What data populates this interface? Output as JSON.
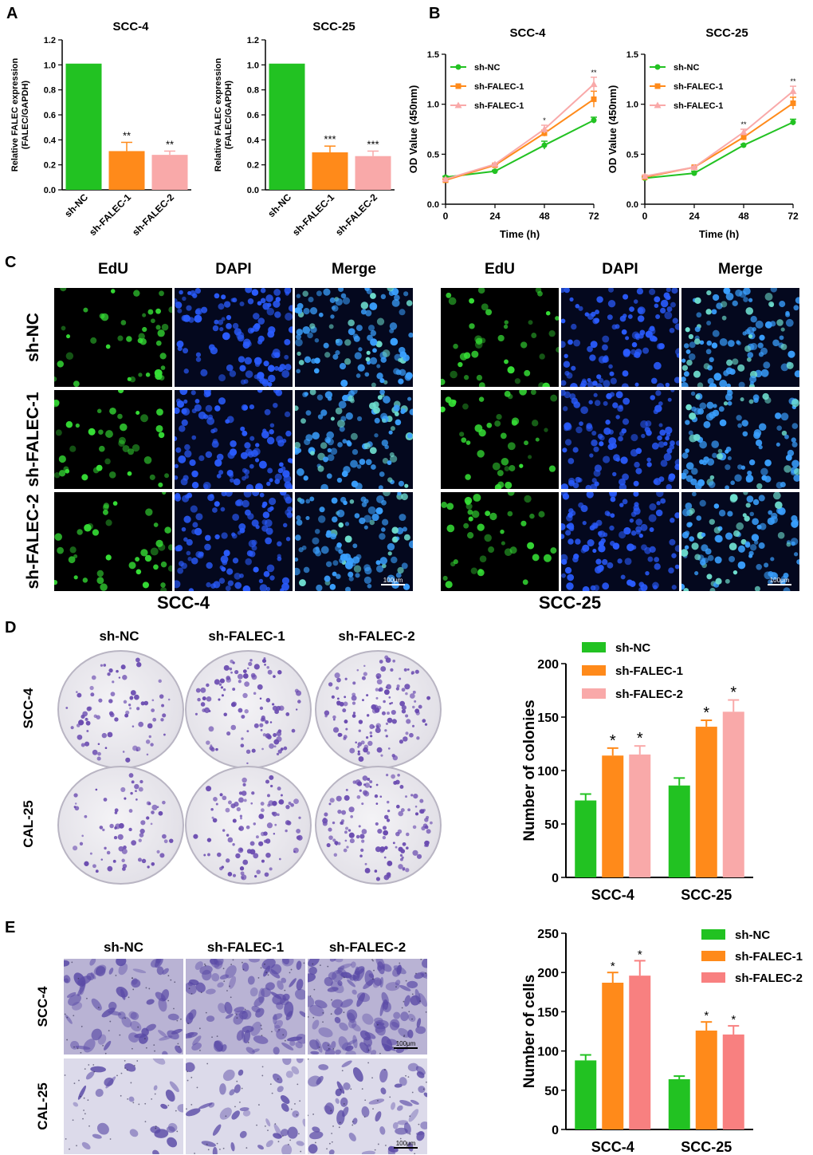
{
  "figure": {
    "panels": {
      "A": "A",
      "B": "B",
      "C": "C",
      "D": "D",
      "E": "E"
    }
  },
  "colors": {
    "sh_nc": "#22c222",
    "sh_falec_1": "#ff8a1a",
    "sh_falec_2": "#f9a9a9",
    "sh_falec_2_e": "#f88080",
    "edu": "#36e036",
    "dapi": "#2a5cff",
    "merge": "#3aa0ff",
    "crystal_violet": "#6a4bb0"
  },
  "panel_c": {
    "columns": [
      "EdU",
      "DAPI",
      "Merge"
    ],
    "rows": [
      "sh-NC",
      "sh-FALEC-1",
      "sh-FALEC-2"
    ],
    "scale_bar": "100μm",
    "left_title": "SCC-4",
    "right_title": "SCC-25"
  },
  "panel_d": {
    "columns": [
      "sh-NC",
      "sh-FALEC-1",
      "sh-FALEC-2"
    ],
    "rows": [
      "SCC-4",
      "CAL-25"
    ]
  },
  "panel_e": {
    "columns": [
      "sh-NC",
      "sh-FALEC-1",
      "sh-FALEC-2"
    ],
    "rows": [
      "SCC-4",
      "CAL-25"
    ],
    "scale_bar": "100μm"
  },
  "chart_data": [
    {
      "id": "A-left",
      "type": "bar",
      "title": "SCC-4",
      "ylabel": "Relative FALEC expression (FALEC/GAPDH)",
      "categories": [
        "sh-NC",
        "sh-FALEC-1",
        "sh-FALEC-2"
      ],
      "values": [
        1.01,
        0.31,
        0.28
      ],
      "errors": [
        0,
        0.07,
        0.03
      ],
      "significance": [
        "",
        "**",
        "**"
      ],
      "ylim": [
        0,
        1.2
      ],
      "yticks": [
        "0.0",
        "0.2",
        "0.4",
        "0.6",
        "0.8",
        "1.0",
        "1.2"
      ]
    },
    {
      "id": "A-right",
      "type": "bar",
      "title": "SCC-25",
      "ylabel": "Relative FALEC expression (FALEC/GAPDH)",
      "categories": [
        "sh-NC",
        "sh-FALEC-1",
        "sh-FALEC-2"
      ],
      "values": [
        1.01,
        0.3,
        0.27
      ],
      "errors": [
        0,
        0.05,
        0.04
      ],
      "significance": [
        "",
        "***",
        "***"
      ],
      "ylim": [
        0,
        1.2
      ],
      "yticks": [
        "0.0",
        "0.2",
        "0.4",
        "0.6",
        "0.8",
        "1.0",
        "1.2"
      ]
    },
    {
      "id": "B-left",
      "type": "line",
      "title": "SCC-4",
      "xlabel": "Time (h)",
      "ylabel": "OD Value (450nm)",
      "x": [
        0,
        24,
        48,
        72
      ],
      "xticks": [
        "0",
        "24",
        "48",
        "72"
      ],
      "ylim": [
        0,
        1.5
      ],
      "yticks": [
        "0.0",
        "0.5",
        "1.0",
        "1.5"
      ],
      "legend_position": "top-left",
      "series": [
        {
          "name": "sh-NC",
          "values": [
            0.27,
            0.33,
            0.59,
            0.84
          ],
          "errors": [
            0.01,
            0.01,
            0.04,
            0.03
          ]
        },
        {
          "name": "sh-FALEC-1",
          "values": [
            0.24,
            0.39,
            0.71,
            1.05
          ],
          "errors": [
            0.01,
            0.01,
            0.03,
            0.08
          ]
        },
        {
          "name": "sh-FALEC-1",
          "values": [
            0.25,
            0.4,
            0.75,
            1.2
          ],
          "errors": [
            0.01,
            0.01,
            0.04,
            0.07
          ]
        }
      ],
      "significance": [
        "",
        "",
        "*",
        "**"
      ]
    },
    {
      "id": "B-right",
      "type": "line",
      "title": "SCC-25",
      "xlabel": "Time (h)",
      "ylabel": "OD Value (450nm)",
      "x": [
        0,
        24,
        48,
        72
      ],
      "xticks": [
        "0",
        "24",
        "48",
        "72"
      ],
      "ylim": [
        0,
        1.5
      ],
      "yticks": [
        "0.0",
        "0.5",
        "1.0",
        "1.5"
      ],
      "legend_position": "top-left",
      "series": [
        {
          "name": "sh-NC",
          "values": [
            0.26,
            0.31,
            0.59,
            0.82
          ],
          "errors": [
            0.01,
            0.02,
            0.01,
            0.03
          ]
        },
        {
          "name": "sh-FALEC-1",
          "values": [
            0.27,
            0.37,
            0.67,
            1.01
          ],
          "errors": [
            0.01,
            0.01,
            0.03,
            0.06
          ]
        },
        {
          "name": "sh-FALEC-1",
          "values": [
            0.28,
            0.37,
            0.72,
            1.13
          ],
          "errors": [
            0.01,
            0.01,
            0.03,
            0.05
          ]
        }
      ],
      "significance": [
        "",
        "",
        "**",
        "**"
      ]
    },
    {
      "id": "D-bar",
      "type": "bar",
      "ylabel": "Number of colonies",
      "categories": [
        "SCC-4",
        "SCC-25"
      ],
      "ylim": [
        0,
        200
      ],
      "yticks": [
        "0",
        "50",
        "100",
        "150",
        "200"
      ],
      "legend_position": "top",
      "series": [
        {
          "name": "sh-NC",
          "values": [
            72,
            86
          ],
          "errors": [
            6,
            7
          ],
          "significance": [
            "",
            ""
          ]
        },
        {
          "name": "sh-FALEC-1",
          "values": [
            114,
            141
          ],
          "errors": [
            7,
            6
          ],
          "significance": [
            "*",
            "*"
          ]
        },
        {
          "name": "sh-FALEC-2",
          "values": [
            115,
            155
          ],
          "errors": [
            8,
            11
          ],
          "significance": [
            "*",
            "*"
          ]
        }
      ]
    },
    {
      "id": "E-bar",
      "type": "bar",
      "ylabel": "Number of cells",
      "categories": [
        "SCC-4",
        "SCC-25"
      ],
      "ylim": [
        0,
        250
      ],
      "yticks": [
        "0",
        "50",
        "100",
        "150",
        "200",
        "250"
      ],
      "legend_position": "top-right",
      "series": [
        {
          "name": "sh-NC",
          "values": [
            88,
            64
          ],
          "errors": [
            7,
            4
          ],
          "significance": [
            "",
            ""
          ]
        },
        {
          "name": "sh-FALEC-1",
          "values": [
            187,
            126
          ],
          "errors": [
            13,
            11
          ],
          "significance": [
            "*",
            "*"
          ]
        },
        {
          "name": "sh-FALEC-2",
          "values": [
            196,
            121
          ],
          "errors": [
            19,
            11
          ],
          "significance": [
            "*",
            "*"
          ]
        }
      ]
    }
  ]
}
